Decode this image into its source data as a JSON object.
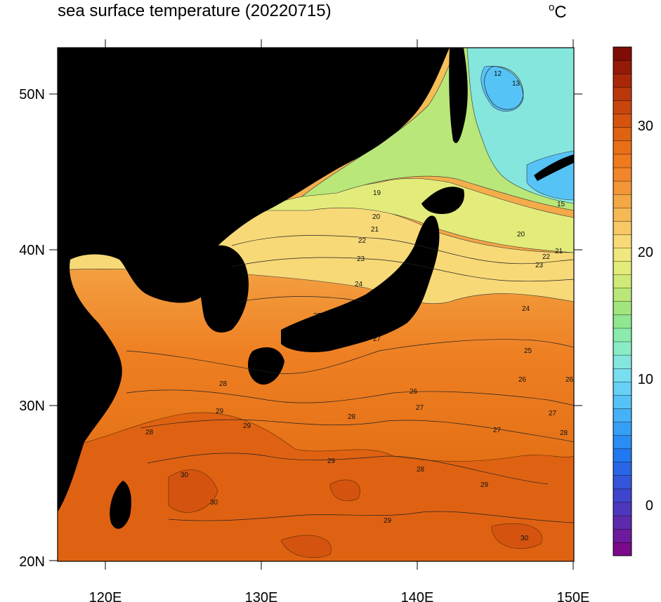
{
  "header": {
    "title": "sea surface temperature (20220715)",
    "unit_symbol": "o",
    "unit_letter": "C"
  },
  "map": {
    "type": "filled-contour",
    "variable": "sea surface temperature",
    "date": "20220715",
    "lon_range": [
      117,
      150
    ],
    "lat_range": [
      20,
      53
    ],
    "x_ticks": [
      "120E",
      "130E",
      "140E",
      "150E"
    ],
    "y_ticks": [
      "20N",
      "30N",
      "40N",
      "50N"
    ],
    "land_color": "#000000"
  },
  "colorbar": {
    "range": [
      -4,
      36
    ],
    "tick_labels": [
      "0",
      "10",
      "20",
      "30"
    ],
    "colors": [
      "#7a0a8a",
      "#6d1a9c",
      "#5e2aad",
      "#4e37bd",
      "#3f45cc",
      "#3356db",
      "#2866e6",
      "#2278ef",
      "#2b8cf4",
      "#359ff6",
      "#45b1f7",
      "#56c3f7",
      "#66d1f5",
      "#78def0",
      "#85e6de",
      "#8aecc6",
      "#8bebad",
      "#8fe78f",
      "#a2e57e",
      "#b9e779",
      "#cfea78",
      "#e3ec7b",
      "#f0e77e",
      "#f7d977",
      "#f8c866",
      "#f6b855",
      "#f4a745",
      "#f39638",
      "#f2862b",
      "#ef7a1f",
      "#e96f17",
      "#df6212",
      "#d4540f",
      "#c8460d",
      "#ba380c",
      "#a9280a",
      "#951a08",
      "#7f0c06"
    ]
  },
  "contour_labels": [
    "12",
    "13",
    "15",
    "19",
    "20",
    "20",
    "21",
    "21",
    "22",
    "22",
    "23",
    "23",
    "24",
    "24",
    "25",
    "25",
    "26",
    "26",
    "26",
    "27",
    "27",
    "27",
    "27",
    "28",
    "28",
    "28",
    "28",
    "28",
    "29",
    "29",
    "29",
    "29",
    "29",
    "30",
    "30",
    "30"
  ]
}
